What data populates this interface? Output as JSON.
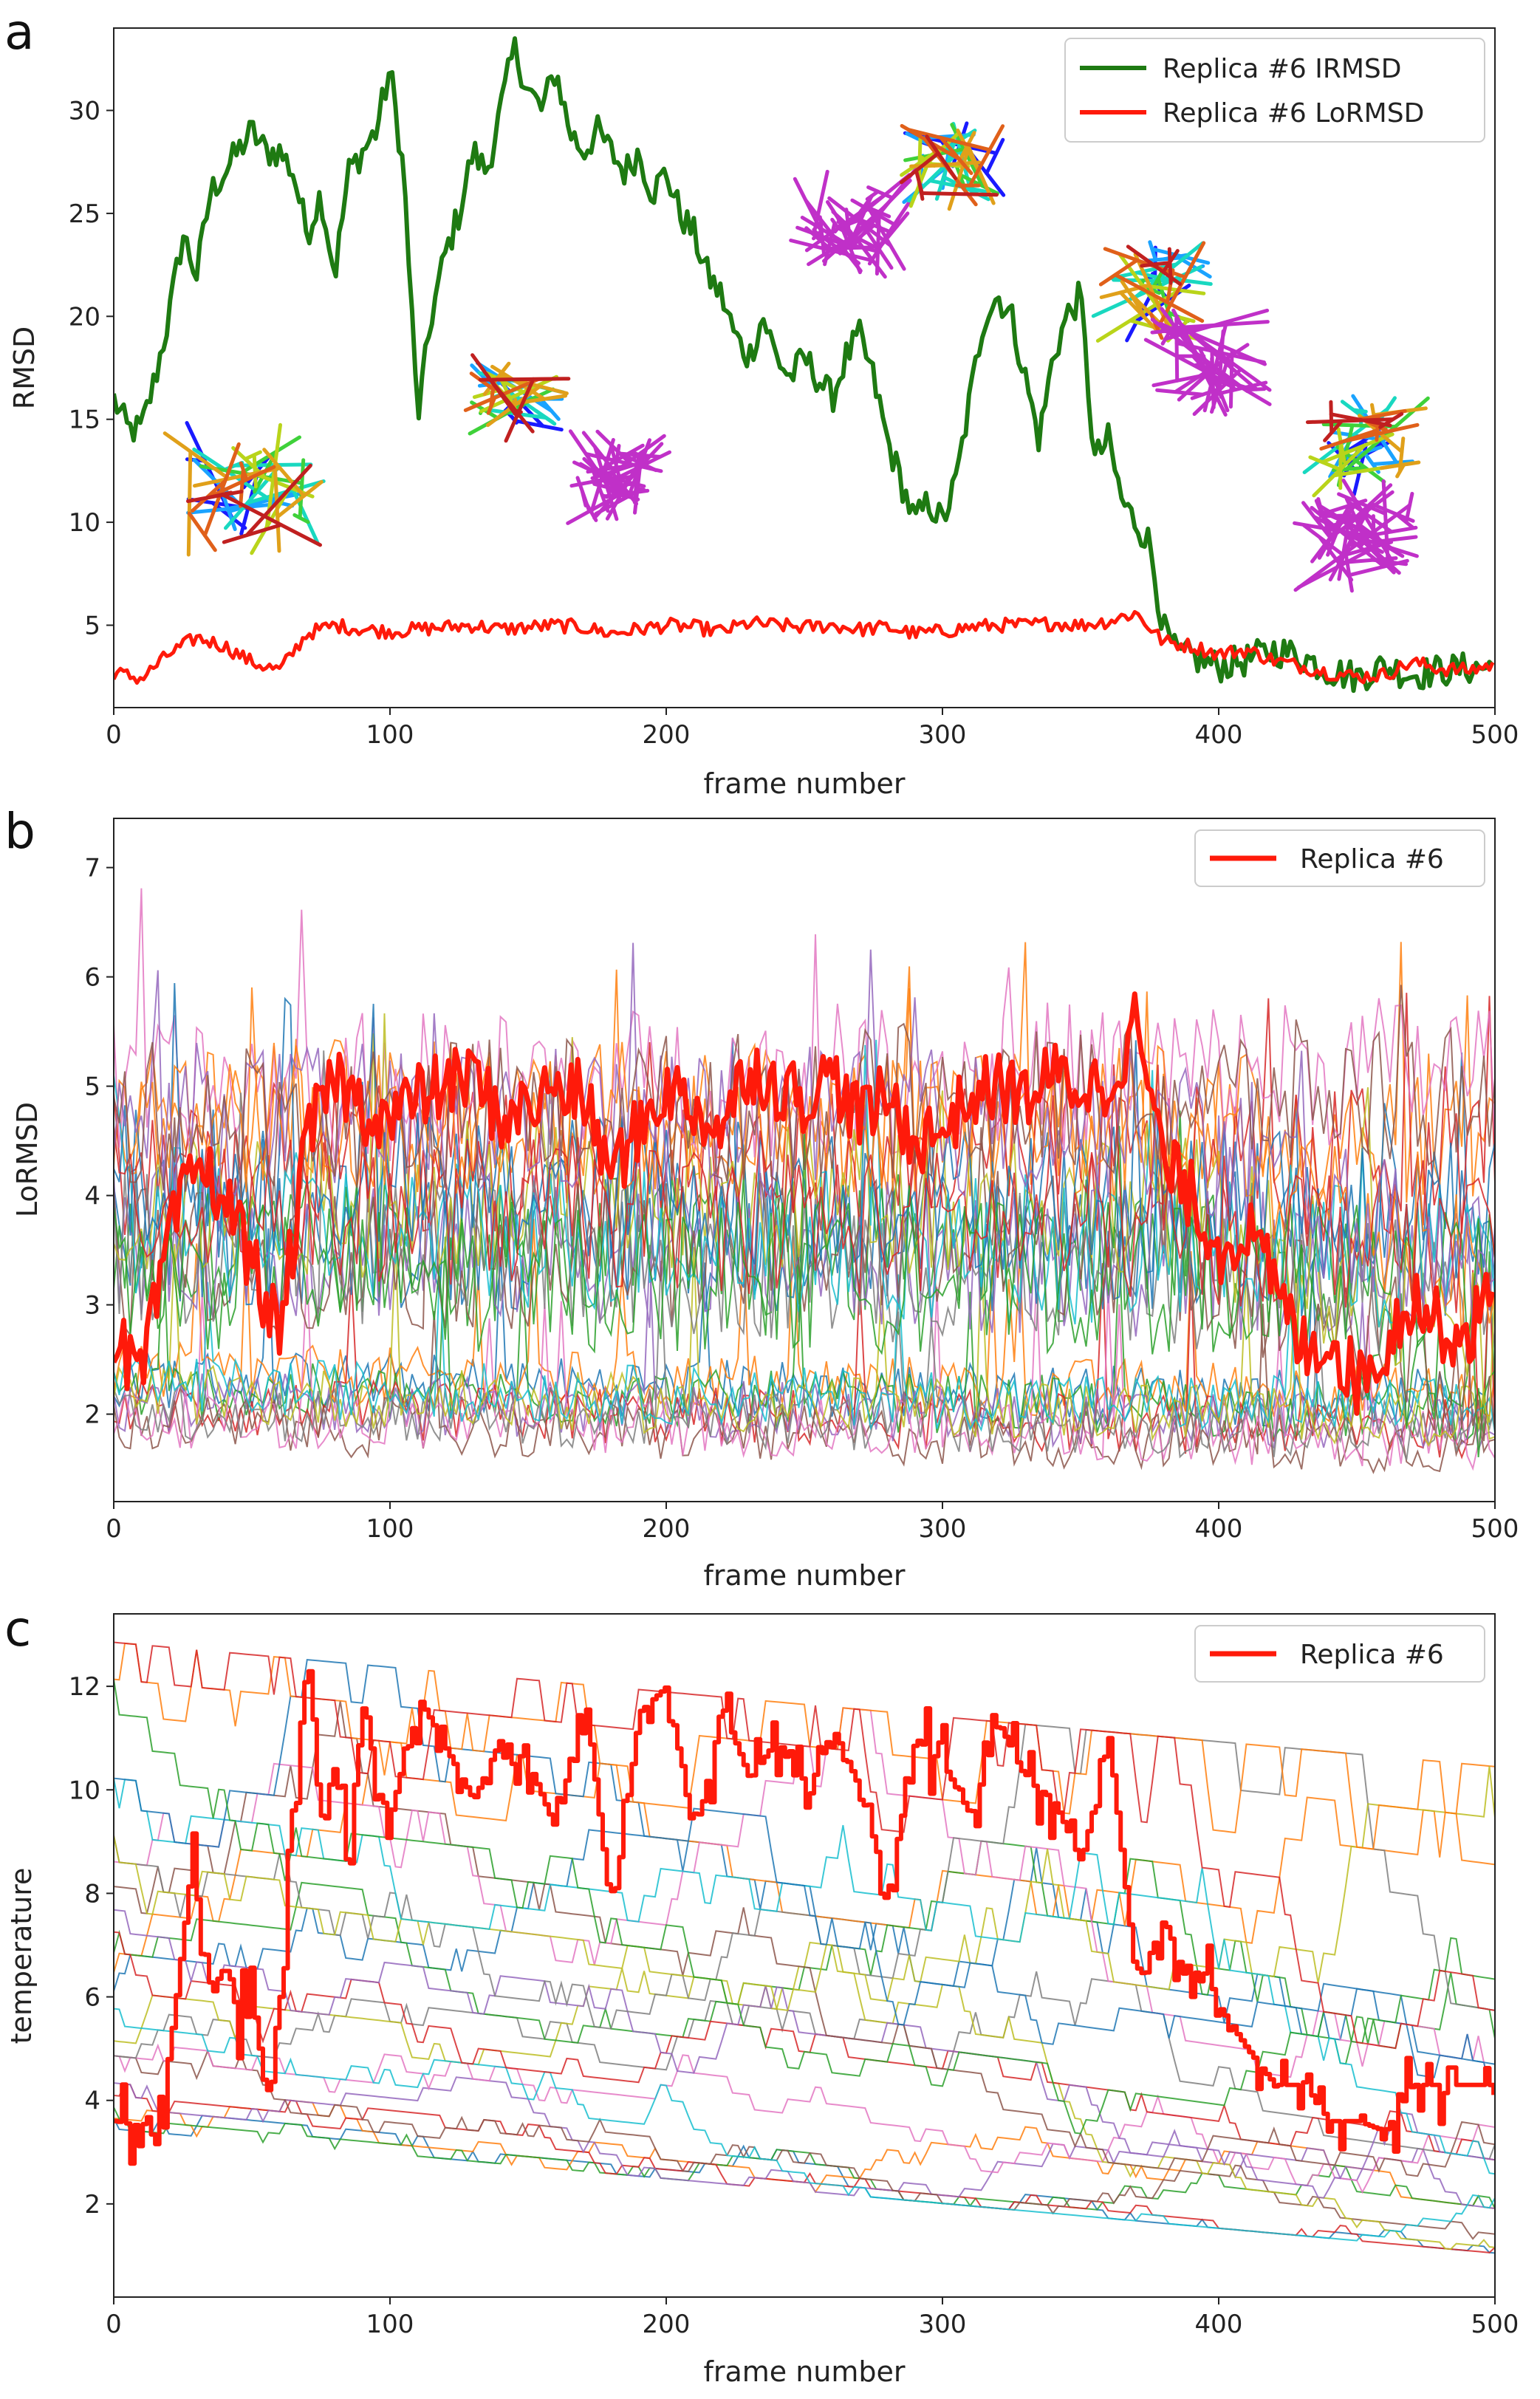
{
  "figure": {
    "panels": [
      "a",
      "b",
      "c"
    ]
  },
  "colors": {
    "irmsd": "#1e7a12",
    "lormsd": "#ff1a0a",
    "replica": "#ff1a0a",
    "axis": "#222222",
    "background_series": [
      "#1f77b4",
      "#ff7f0e",
      "#2ca02c",
      "#d62728",
      "#9467bd",
      "#8c564b",
      "#e377c2",
      "#7f7f7f",
      "#bcbd22",
      "#17becf"
    ]
  },
  "chart_data": [
    {
      "id": "a",
      "type": "line",
      "panel_label": "a",
      "xlabel": "frame number",
      "ylabel": "RMSD",
      "xlim": [
        0,
        500
      ],
      "ylim": [
        1.0,
        34.0
      ],
      "xticks": [
        0,
        100,
        200,
        300,
        400,
        500
      ],
      "yticks": [
        5,
        10,
        15,
        20,
        25,
        30
      ],
      "legend_position": "top-right",
      "series": [
        {
          "name": "Replica #6 IRMSD",
          "key": "irmsd",
          "x": [
            0,
            5,
            10,
            15,
            20,
            25,
            30,
            35,
            40,
            45,
            50,
            55,
            60,
            65,
            70,
            75,
            80,
            85,
            90,
            95,
            100,
            105,
            110,
            115,
            120,
            125,
            130,
            135,
            140,
            145,
            150,
            155,
            160,
            165,
            170,
            175,
            180,
            185,
            190,
            195,
            200,
            205,
            210,
            215,
            220,
            225,
            230,
            235,
            240,
            245,
            250,
            255,
            260,
            265,
            270,
            275,
            280,
            285,
            290,
            295,
            300,
            305,
            310,
            315,
            320,
            325,
            330,
            335,
            340,
            345,
            350,
            355,
            360,
            365,
            370,
            375,
            380,
            385,
            390,
            395,
            400,
            410,
            420,
            430,
            440,
            450,
            460,
            470,
            480,
            490,
            500
          ],
          "y": [
            16,
            14.5,
            14.5,
            17,
            20,
            24,
            22,
            26,
            27,
            28,
            29,
            28,
            28,
            27,
            24,
            26,
            22,
            27,
            28,
            29,
            32,
            27,
            15,
            20,
            23,
            25,
            28,
            27,
            30,
            33,
            31,
            30,
            32,
            29,
            28,
            29,
            28,
            27,
            28,
            26,
            27,
            25,
            24,
            22,
            21,
            19,
            18,
            20,
            18,
            17,
            18,
            17,
            16,
            18,
            19,
            17,
            14,
            12,
            10,
            11,
            10,
            12,
            16,
            20,
            21,
            20,
            17,
            14,
            18,
            20,
            21,
            13,
            14,
            11,
            10,
            9,
            4.8,
            3.5,
            3.5,
            3.2,
            3.0,
            3.3,
            3.8,
            3.5,
            2.8,
            2.5,
            3.0,
            2.6,
            2.8,
            2.9,
            3.0
          ]
        },
        {
          "name": "Replica #6 LoRMSD",
          "key": "lormsd",
          "x": [
            0,
            10,
            20,
            30,
            40,
            50,
            60,
            70,
            80,
            90,
            100,
            110,
            120,
            130,
            140,
            150,
            160,
            170,
            180,
            190,
            200,
            210,
            220,
            230,
            240,
            250,
            260,
            270,
            280,
            290,
            300,
            310,
            320,
            330,
            340,
            350,
            360,
            370,
            380,
            390,
            400,
            410,
            420,
            430,
            440,
            450,
            460,
            470,
            480,
            490,
            500
          ],
          "y": [
            2.7,
            2.4,
            3.6,
            4.4,
            4.0,
            3.2,
            2.8,
            4.6,
            5.0,
            4.8,
            4.7,
            4.8,
            4.9,
            5.0,
            4.8,
            4.9,
            5.0,
            4.9,
            4.6,
            4.8,
            5.0,
            4.9,
            4.7,
            5.1,
            5.0,
            4.9,
            5.0,
            4.8,
            4.9,
            4.6,
            4.7,
            4.9,
            5.0,
            5.0,
            5.1,
            5.0,
            5.2,
            5.6,
            4.2,
            4.0,
            3.6,
            3.8,
            3.3,
            3.0,
            2.7,
            2.5,
            2.6,
            3.2,
            2.9,
            2.8,
            3.1
          ]
        }
      ]
    },
    {
      "id": "b",
      "type": "line",
      "panel_label": "b",
      "xlabel": "frame number",
      "ylabel": "LoRMSD",
      "xlim": [
        0,
        500
      ],
      "ylim": [
        1.2,
        7.45
      ],
      "xticks": [
        0,
        100,
        200,
        300,
        400,
        500
      ],
      "yticks": [
        2,
        3,
        4,
        5,
        6,
        7
      ],
      "legend_position": "top-right",
      "series": [
        {
          "name": "Replica #6",
          "key": "replica",
          "x": [
            0,
            10,
            20,
            30,
            40,
            50,
            60,
            70,
            80,
            90,
            100,
            110,
            120,
            130,
            140,
            150,
            160,
            170,
            180,
            190,
            200,
            210,
            220,
            230,
            240,
            250,
            260,
            270,
            280,
            290,
            300,
            310,
            320,
            330,
            340,
            350,
            360,
            370,
            380,
            390,
            400,
            410,
            420,
            430,
            440,
            450,
            460,
            470,
            480,
            490,
            500
          ],
          "y": [
            2.7,
            2.3,
            3.6,
            4.3,
            4.0,
            3.4,
            2.7,
            4.5,
            5.1,
            4.8,
            4.7,
            4.9,
            5.0,
            5.1,
            4.7,
            4.8,
            5.0,
            4.9,
            4.2,
            4.6,
            5.0,
            4.8,
            4.6,
            5.2,
            5.0,
            4.9,
            5.1,
            4.7,
            4.9,
            4.5,
            4.6,
            4.9,
            5.0,
            4.9,
            5.1,
            5.0,
            5.0,
            5.6,
            4.3,
            4.0,
            3.5,
            3.7,
            3.2,
            2.6,
            2.7,
            2.3,
            2.6,
            3.1,
            2.8,
            2.7,
            3.2
          ]
        }
      ]
    },
    {
      "id": "c",
      "type": "line",
      "panel_label": "c",
      "xlabel": "frame number",
      "ylabel": "temperature",
      "xlim": [
        0,
        500
      ],
      "ylim": [
        0.2,
        13.4
      ],
      "xticks": [
        0,
        100,
        200,
        300,
        400,
        500
      ],
      "yticks": [
        2,
        4,
        6,
        8,
        10,
        12
      ],
      "legend_position": "top-right",
      "series": [
        {
          "name": "Replica #6",
          "key": "replica",
          "x": [
            0,
            10,
            18,
            22,
            28,
            35,
            40,
            45,
            50,
            55,
            60,
            65,
            70,
            75,
            80,
            85,
            90,
            95,
            100,
            110,
            120,
            130,
            140,
            150,
            160,
            170,
            180,
            190,
            200,
            210,
            220,
            230,
            240,
            250,
            260,
            270,
            280,
            290,
            300,
            310,
            320,
            330,
            340,
            350,
            360,
            370,
            380,
            390,
            395,
            400,
            410,
            420,
            430,
            440,
            450,
            460,
            470,
            480,
            490,
            500
          ],
          "y": [
            3.6,
            3.5,
            4.2,
            5.8,
            8.6,
            6.1,
            6.6,
            5.6,
            6.0,
            4.0,
            6.0,
            10.0,
            12.6,
            9.5,
            10.5,
            8.2,
            12.0,
            10.0,
            9.5,
            11.8,
            10.8,
            9.8,
            11.0,
            10.5,
            9.2,
            12.0,
            7.5,
            11.5,
            12.0,
            9.0,
            11.6,
            10.2,
            11.0,
            9.8,
            11.2,
            10.0,
            8.0,
            11.0,
            10.5,
            9.5,
            11.3,
            10.2,
            9.8,
            8.6,
            11.0,
            6.2,
            7.5,
            6.0,
            6.5,
            5.8,
            5.0,
            4.3,
            4.3,
            3.6,
            3.6,
            3.4,
            4.3,
            4.3,
            4.3,
            4.3
          ]
        }
      ]
    }
  ]
}
